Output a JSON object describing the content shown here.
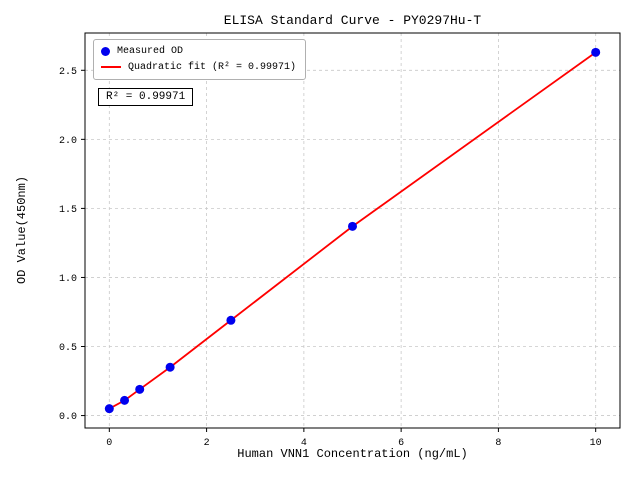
{
  "title": "ELISA Standard Curve - PY0297Hu-T",
  "legend": {
    "measured_label": "Measured OD",
    "fit_label": "Quadratic fit (R² = 0.99971)"
  },
  "annotation": "R² = 0.99971",
  "colors": {
    "point": "#0000ee",
    "fit_line": "#ff0000",
    "grid": "#c9c9c9",
    "axis": "#000000"
  },
  "chart_data": {
    "type": "scatter",
    "title": "ELISA Standard Curve - PY0297Hu-T",
    "xlabel": "Human VNN1 Concentration (ng/mL)",
    "ylabel": "OD Value(450nm)",
    "x": [
      0,
      0.313,
      0.625,
      1.25,
      2.5,
      5,
      10
    ],
    "y": [
      0.05,
      0.11,
      0.19,
      0.35,
      0.69,
      1.37,
      2.63
    ],
    "series": [
      {
        "name": "Measured OD",
        "type": "scatter"
      },
      {
        "name": "Quadratic fit (R² = 0.99971)",
        "type": "line"
      }
    ],
    "r_squared": 0.99971,
    "xticks": [
      0,
      2,
      4,
      6,
      8,
      10
    ],
    "yticks": [
      0.0,
      0.5,
      1.0,
      1.5,
      2.0,
      2.5
    ],
    "xlim": [
      -0.5,
      10.5
    ],
    "ylim": [
      -0.09,
      2.77
    ],
    "grid": true,
    "legend_position": "upper left"
  }
}
